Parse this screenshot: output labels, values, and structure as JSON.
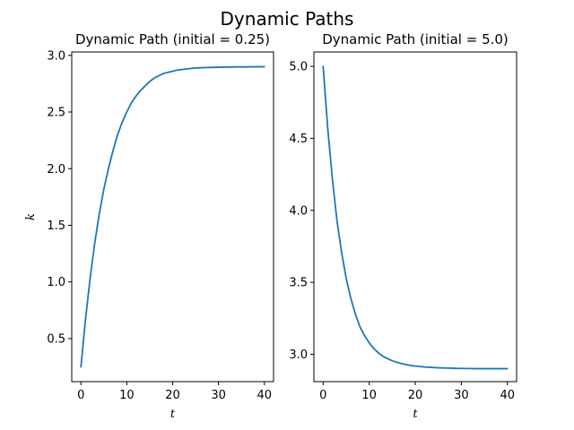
{
  "figure": {
    "title": "Dynamic Paths"
  },
  "chart_data": [
    {
      "type": "line",
      "title": "Dynamic Path (initial = 0.25)",
      "xlabel": "t",
      "ylabel": "k",
      "xlim": [
        -2,
        42
      ],
      "ylim": [
        0.12,
        3.03
      ],
      "xticks": [
        0,
        10,
        20,
        30,
        40
      ],
      "xtick_labels": [
        "0",
        "10",
        "20",
        "30",
        "40"
      ],
      "yticks": [
        0.5,
        1.0,
        1.5,
        2.0,
        2.5,
        3.0
      ],
      "ytick_labels": [
        "0.5",
        "1.0",
        "1.5",
        "2.0",
        "2.5",
        "3.0"
      ],
      "grid": false,
      "color": "#1f77b4",
      "series": [
        {
          "x": [
            0,
            1,
            2,
            3,
            4,
            5,
            6,
            7,
            8,
            9,
            10,
            11,
            12,
            13,
            14,
            15,
            16,
            17,
            18,
            19,
            20,
            21,
            22,
            23,
            24,
            25,
            26,
            27,
            28,
            29,
            30,
            31,
            32,
            33,
            34,
            35,
            36,
            37,
            38,
            39,
            40
          ],
          "y": [
            0.25,
            0.67,
            1.03,
            1.34,
            1.6,
            1.82,
            2.0,
            2.16,
            2.3,
            2.41,
            2.5,
            2.58,
            2.64,
            2.69,
            2.73,
            2.77,
            2.8,
            2.82,
            2.84,
            2.85,
            2.86,
            2.87,
            2.875,
            2.88,
            2.885,
            2.888,
            2.89,
            2.892,
            2.893,
            2.894,
            2.895,
            2.896,
            2.897,
            2.897,
            2.898,
            2.898,
            2.898,
            2.899,
            2.899,
            2.899,
            2.9
          ]
        }
      ]
    },
    {
      "type": "line",
      "title": "Dynamic Path (initial = 5.0)",
      "xlabel": "t",
      "ylabel": "",
      "xlim": [
        -2,
        42
      ],
      "ylim": [
        2.81,
        5.1
      ],
      "xticks": [
        0,
        10,
        20,
        30,
        40
      ],
      "xtick_labels": [
        "0",
        "10",
        "20",
        "30",
        "40"
      ],
      "yticks": [
        3.0,
        3.5,
        4.0,
        4.5,
        5.0
      ],
      "ytick_labels": [
        "3.0",
        "3.5",
        "4.0",
        "4.5",
        "5.0"
      ],
      "grid": false,
      "color": "#1f77b4",
      "series": [
        {
          "x": [
            0,
            1,
            2,
            3,
            4,
            5,
            6,
            7,
            8,
            9,
            10,
            11,
            12,
            13,
            14,
            15,
            16,
            17,
            18,
            19,
            20,
            21,
            22,
            23,
            24,
            25,
            26,
            27,
            28,
            29,
            30,
            31,
            32,
            33,
            34,
            35,
            36,
            37,
            38,
            39,
            40
          ],
          "y": [
            5.0,
            4.57,
            4.22,
            3.93,
            3.71,
            3.53,
            3.39,
            3.28,
            3.19,
            3.13,
            3.08,
            3.04,
            3.01,
            2.985,
            2.97,
            2.955,
            2.945,
            2.935,
            2.928,
            2.922,
            2.918,
            2.915,
            2.912,
            2.91,
            2.908,
            2.906,
            2.905,
            2.904,
            2.903,
            2.902,
            2.902,
            2.901,
            2.901,
            2.9,
            2.9,
            2.9,
            2.9,
            2.9,
            2.9,
            2.9,
            2.9
          ]
        }
      ]
    }
  ]
}
